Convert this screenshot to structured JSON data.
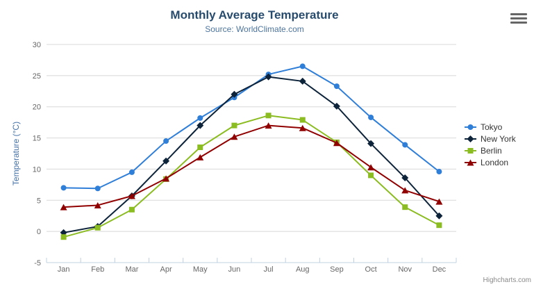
{
  "chart": {
    "title": "Monthly Average Temperature",
    "subtitle": "Source: WorldClimate.com",
    "credit": "Highcharts.com",
    "menu_icon": "hamburger-icon"
  },
  "chart_data": {
    "type": "line",
    "title": "Monthly Average Temperature",
    "subtitle": "Source: WorldClimate.com",
    "categories": [
      "Jan",
      "Feb",
      "Mar",
      "Apr",
      "May",
      "Jun",
      "Jul",
      "Aug",
      "Sep",
      "Oct",
      "Nov",
      "Dec"
    ],
    "xlabel": "",
    "ylabel": "Temperature (°C)",
    "ylim": [
      -5,
      30
    ],
    "ytick_step": 5,
    "grid": true,
    "legend_position": "right",
    "series": [
      {
        "name": "Tokyo",
        "color": "#2f7ed8",
        "marker": "circle",
        "values": [
          7.0,
          6.9,
          9.5,
          14.5,
          18.2,
          21.5,
          25.2,
          26.5,
          23.3,
          18.3,
          13.9,
          9.6
        ]
      },
      {
        "name": "New York",
        "color": "#0d233a",
        "marker": "diamond",
        "values": [
          -0.2,
          0.8,
          5.7,
          11.3,
          17.0,
          22.0,
          24.8,
          24.1,
          20.1,
          14.1,
          8.6,
          2.5
        ]
      },
      {
        "name": "Berlin",
        "color": "#8bbc21",
        "marker": "square",
        "values": [
          -0.9,
          0.6,
          3.5,
          8.4,
          13.5,
          17.0,
          18.6,
          17.9,
          14.3,
          9.0,
          3.9,
          1.0
        ]
      },
      {
        "name": "London",
        "color": "#910000",
        "marker": "triangle",
        "values": [
          3.9,
          4.2,
          5.7,
          8.5,
          11.9,
          15.2,
          17.0,
          16.6,
          14.2,
          10.3,
          6.6,
          4.8
        ]
      }
    ]
  },
  "colors": {
    "title": "#274b6d",
    "subtitle": "#4d759e",
    "axis_title": "#4572a7",
    "tick_label": "#666666",
    "grid": "#d8d8d8",
    "axis_line": "#c0d0e0",
    "legend_text": "#333333",
    "credit": "#8a8a8a",
    "menu": "#666666"
  }
}
